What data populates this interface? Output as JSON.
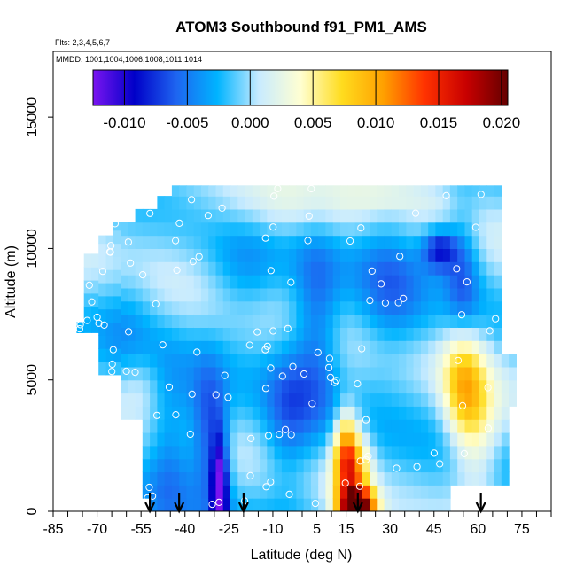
{
  "chart_data": {
    "type": "heatmap",
    "title": "ATOM3 Southbound f91_PM1_AMS",
    "note_flights": "Flts: 2,3,4,5,6,7",
    "note_dates": "MMDD: 1001,1004,1006,1008,1011,1014",
    "xlabel": "Latitude (deg N)",
    "ylabel": "Altitude (m)",
    "xlim": [
      -85,
      85
    ],
    "ylim": [
      0,
      17500
    ],
    "x_ticks": [
      -85,
      -70,
      -55,
      -40,
      -25,
      -10,
      5,
      15,
      30,
      45,
      60,
      75
    ],
    "y_ticks": [
      0,
      5000,
      10000,
      15000
    ],
    "grid": false,
    "colorbar": {
      "placement": "top-inside",
      "min": -0.0125,
      "max": 0.0205,
      "ticks": [
        -0.01,
        -0.005,
        0.0,
        0.005,
        0.01,
        0.015,
        0.02
      ],
      "tick_labels": [
        "-0.010",
        "-0.005",
        "0.000",
        "0.005",
        "0.010",
        "0.015",
        "0.020"
      ],
      "colors": [
        "#7a14f0",
        "#0000c8",
        "#1e64f0",
        "#00b4ff",
        "#c8ebff",
        "#ffffd2",
        "#ffdc1e",
        "#ffa000",
        "#ff3200",
        "#c80000",
        "#640000"
      ]
    },
    "profile_latitudes": [
      -52,
      -42,
      -20,
      19,
      61
    ],
    "field_blobs": [
      {
        "lat": -28,
        "alt": 800,
        "value": -0.011,
        "rx": 3,
        "ry": 2200
      },
      {
        "lat": -32,
        "alt": 3000,
        "value": -0.006,
        "rx": 6,
        "ry": 2500
      },
      {
        "lat": -45,
        "alt": 2500,
        "value": -0.004,
        "rx": 8,
        "ry": 3000
      },
      {
        "lat": -60,
        "alt": 7500,
        "value": -0.002,
        "rx": 10,
        "ry": 2500
      },
      {
        "lat": 5,
        "alt": 7000,
        "value": -0.005,
        "rx": 8,
        "ry": 3500
      },
      {
        "lat": -5,
        "alt": 3500,
        "value": -0.004,
        "rx": 8,
        "ry": 3000
      },
      {
        "lat": 30,
        "alt": 8500,
        "value": -0.004,
        "rx": 12,
        "ry": 3000
      },
      {
        "lat": 47,
        "alt": 10000,
        "value": -0.008,
        "rx": 6,
        "ry": 800
      },
      {
        "lat": 55,
        "alt": 9000,
        "value": -0.005,
        "rx": 6,
        "ry": 2500
      },
      {
        "lat": -20,
        "alt": 9000,
        "value": -0.003,
        "rx": 12,
        "ry": 2000
      },
      {
        "lat": 17,
        "alt": 1200,
        "value": 0.012,
        "rx": 6,
        "ry": 1800
      },
      {
        "lat": 19,
        "alt": 300,
        "value": 0.018,
        "rx": 6,
        "ry": 500
      },
      {
        "lat": 15,
        "alt": 2500,
        "value": 0.008,
        "rx": 4,
        "ry": 1500
      },
      {
        "lat": 55,
        "alt": 5000,
        "value": 0.008,
        "rx": 7,
        "ry": 2200
      },
      {
        "lat": 60,
        "alt": 3000,
        "value": 0.005,
        "rx": 8,
        "ry": 2500
      },
      {
        "lat": -55,
        "alt": 5000,
        "value": 0.002,
        "rx": 8,
        "ry": 1200
      },
      {
        "lat": -10,
        "alt": 11500,
        "value": 0.0025,
        "rx": 25,
        "ry": 1200
      },
      {
        "lat": 30,
        "alt": 12000,
        "value": 0.002,
        "rx": 15,
        "ry": 600
      }
    ]
  }
}
